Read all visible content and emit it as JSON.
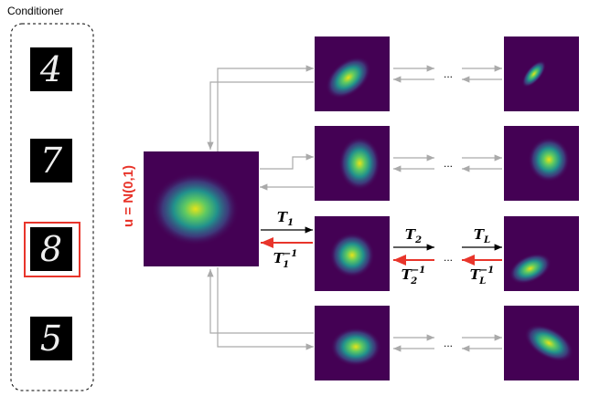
{
  "conditioner": {
    "title": "Conditioner",
    "digits": [
      "4",
      "7",
      "8",
      "5"
    ]
  },
  "base_label": "u = N(0,1)",
  "transforms": [
    {
      "base": "T",
      "sub": "1"
    },
    {
      "base": "T",
      "sub": "1",
      "sup": "−1"
    },
    {
      "base": "T",
      "sub": "2"
    },
    {
      "base": "T",
      "sub": "2",
      "sup": "−1"
    },
    {
      "base": "T",
      "sub": "L"
    },
    {
      "base": "T",
      "sub": "L",
      "sup": "−1"
    }
  ],
  "ellipses": [
    "...",
    "...",
    "...",
    "..."
  ]
}
